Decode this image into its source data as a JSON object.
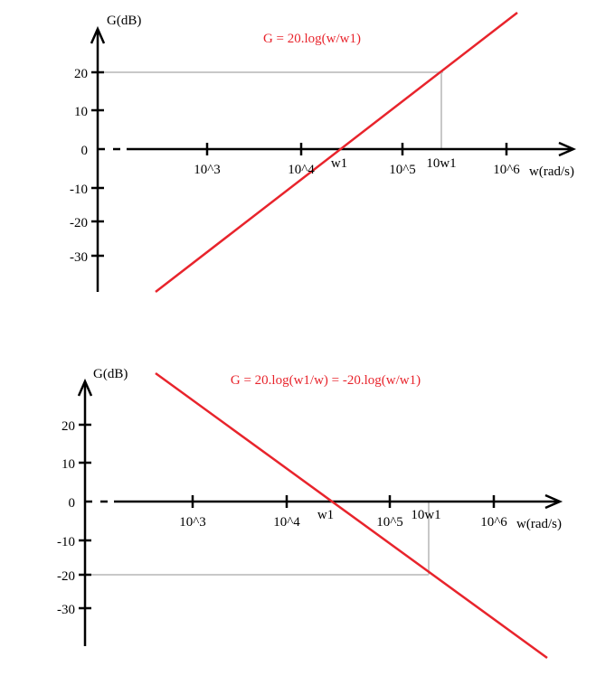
{
  "plots": [
    {
      "y_label": "G(dB)",
      "formula": "G = 20.log(w/w1)",
      "y_ticks": [
        "20",
        "10",
        "0",
        "-10",
        "-20",
        "-30"
      ],
      "x_ticks": [
        "10^3",
        "10^4",
        "10^5",
        "10^6"
      ],
      "x_label": "w(rad/s)",
      "w1_label": "w1",
      "ten_w1_label": "10w1"
    },
    {
      "y_label": "G(dB)",
      "formula": "G = 20.log(w1/w) = -20.log(w/w1)",
      "y_ticks": [
        "20",
        "10",
        "0",
        "-10",
        "-20",
        "-30"
      ],
      "x_ticks": [
        "10^3",
        "10^4",
        "10^5",
        "10^6"
      ],
      "x_label": "w(rad/s)",
      "w1_label": "w1",
      "ten_w1_label": "10w1"
    }
  ]
}
